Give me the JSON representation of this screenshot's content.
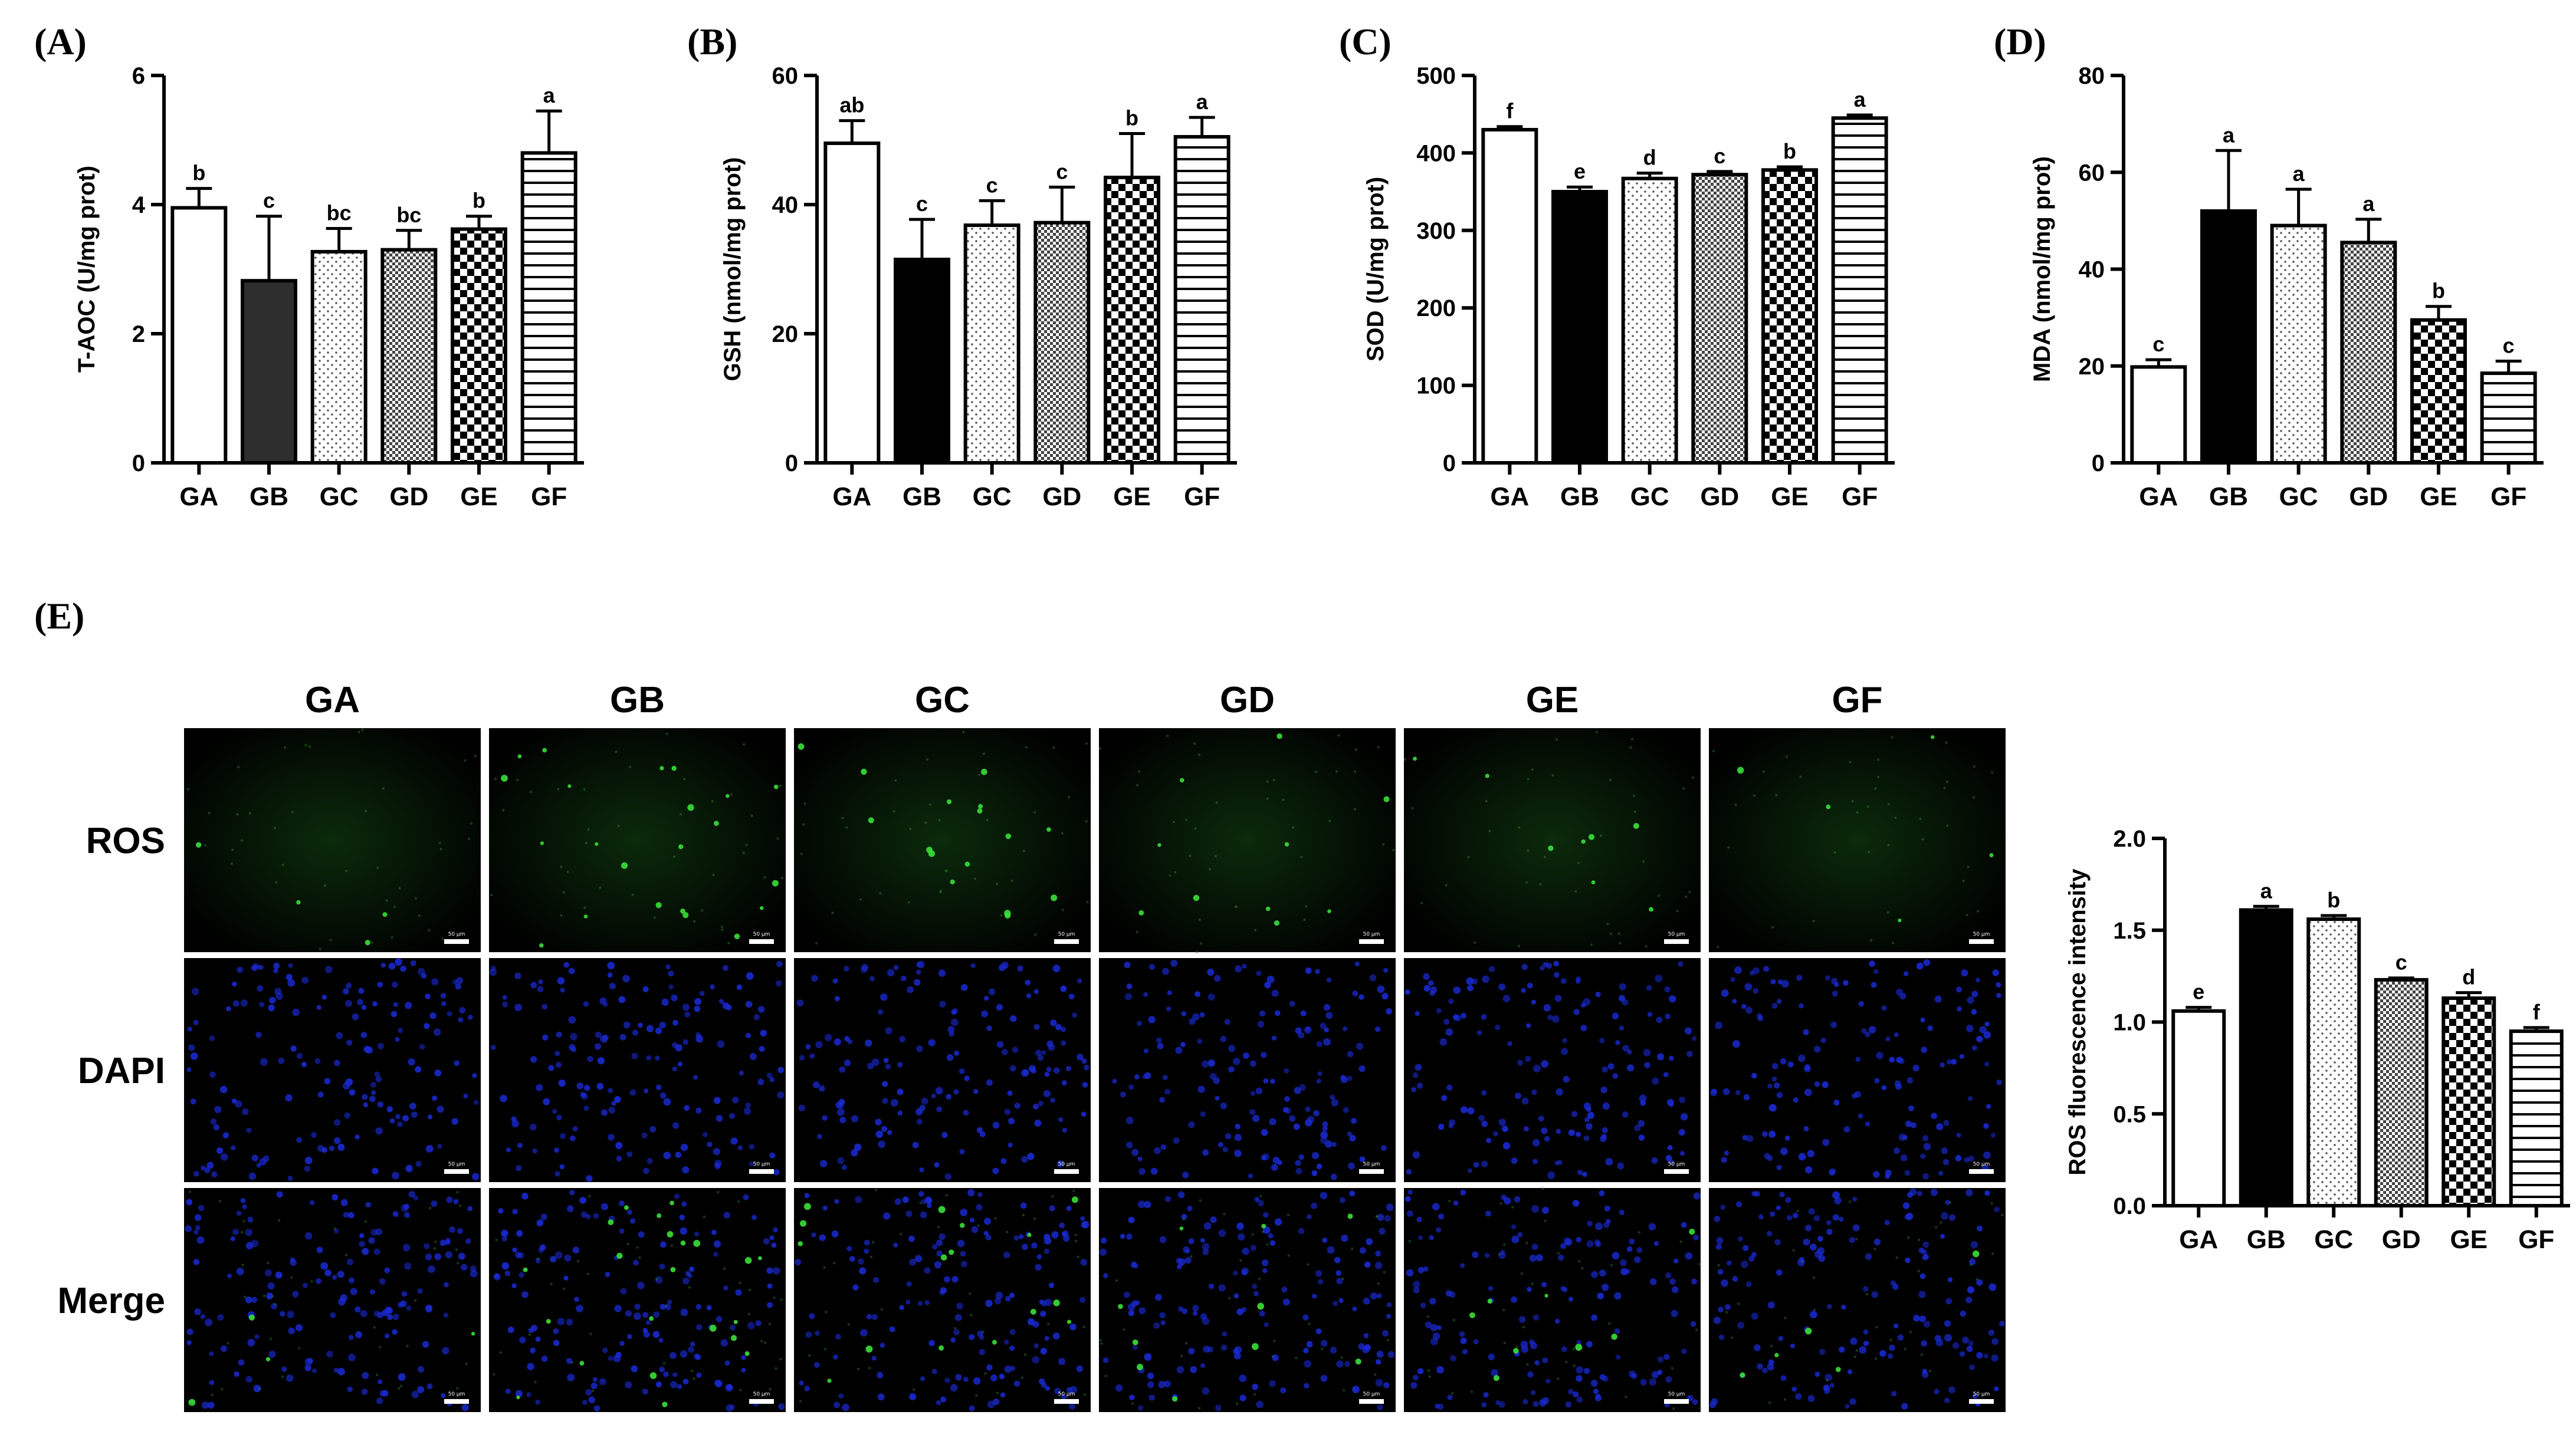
{
  "colors": {
    "ros_green": "#2f7d2a",
    "dapi_blue": "#1a2ad4",
    "bar_dark": "#2e2e2e",
    "bar_black": "#000000"
  },
  "panel_e_label": "(E)",
  "micro_columns": [
    "GA",
    "GB",
    "GC",
    "GD",
    "GE",
    "GF"
  ],
  "micro_rows": [
    "ROS",
    "DAPI",
    "Merge"
  ],
  "scale_bar_text": "50 μm",
  "chart_data": [
    {
      "type": "bar",
      "panel": "(A)",
      "categories": [
        "GA",
        "GB",
        "GC",
        "GD",
        "GE",
        "GF"
      ],
      "values": [
        3.95,
        2.82,
        3.27,
        3.3,
        3.62,
        4.8
      ],
      "errors": [
        0.3,
        1.0,
        0.36,
        0.3,
        0.2,
        0.65
      ],
      "letters": [
        "b",
        "c",
        "bc",
        "bc",
        "b",
        "a"
      ],
      "patterns": [
        "white",
        "dark",
        "dots",
        "fine-check",
        "checker",
        "hstripe"
      ],
      "ylabel": "T-AOC (U/mg prot)",
      "ylim": [
        0,
        6
      ],
      "yticks": [
        0,
        2,
        4,
        6
      ],
      "ytick_labels": [
        "0",
        "2",
        "4",
        "6"
      ]
    },
    {
      "type": "bar",
      "panel": "(B)",
      "categories": [
        "GA",
        "GB",
        "GC",
        "GD",
        "GE",
        "GF"
      ],
      "values": [
        49.5,
        31.5,
        36.8,
        37.2,
        44.2,
        50.5
      ],
      "errors": [
        3.5,
        6.2,
        3.8,
        5.5,
        6.8,
        3.0
      ],
      "letters": [
        "ab",
        "c",
        "c",
        "c",
        "b",
        "a"
      ],
      "patterns": [
        "white",
        "black",
        "dots",
        "fine-check",
        "checker",
        "hstripe"
      ],
      "ylabel": "GSH (nmol/mg prot)",
      "ylim": [
        0,
        60
      ],
      "yticks": [
        0,
        20,
        40,
        60
      ],
      "ytick_labels": [
        "0",
        "20",
        "40",
        "60"
      ]
    },
    {
      "type": "bar",
      "panel": "(C)",
      "categories": [
        "GA",
        "GB",
        "GC",
        "GD",
        "GE",
        "GF"
      ],
      "values": [
        430,
        350,
        367,
        372,
        378,
        445
      ],
      "errors": [
        4,
        6,
        7,
        4,
        4,
        4
      ],
      "letters": [
        "f",
        "e",
        "d",
        "c",
        "b",
        "a"
      ],
      "patterns": [
        "white",
        "black",
        "dots",
        "fine-check",
        "checker",
        "hstripe"
      ],
      "ylabel": "SOD (U/mg prot)",
      "ylim": [
        0,
        500
      ],
      "yticks": [
        0,
        100,
        200,
        300,
        400,
        500
      ],
      "ytick_labels": [
        "0",
        "100",
        "200",
        "300",
        "400",
        "500"
      ]
    },
    {
      "type": "bar",
      "panel": "(D)",
      "categories": [
        "GA",
        "GB",
        "GC",
        "GD",
        "GE",
        "GF"
      ],
      "values": [
        19.8,
        52.0,
        49.0,
        45.5,
        29.5,
        18.5
      ],
      "errors": [
        1.5,
        12.5,
        7.5,
        4.8,
        2.8,
        2.5
      ],
      "letters": [
        "c",
        "a",
        "a",
        "a",
        "b",
        "c"
      ],
      "patterns": [
        "white",
        "black",
        "dots",
        "fine-check",
        "checker",
        "hstripe"
      ],
      "ylabel": "MDA (nmol/mg prot)",
      "ylim": [
        0,
        80
      ],
      "yticks": [
        0,
        20,
        40,
        60,
        80
      ],
      "ytick_labels": [
        "0",
        "20",
        "40",
        "60",
        "80"
      ]
    },
    {
      "type": "bar",
      "panel": "(E)",
      "categories": [
        "GA",
        "GB",
        "GC",
        "GD",
        "GE",
        "GF"
      ],
      "values": [
        1.06,
        1.61,
        1.56,
        1.23,
        1.13,
        0.95
      ],
      "errors": [
        0.02,
        0.02,
        0.02,
        0.01,
        0.03,
        0.02
      ],
      "letters": [
        "e",
        "a",
        "b",
        "c",
        "d",
        "f"
      ],
      "patterns": [
        "white",
        "black",
        "dots",
        "fine-check",
        "checker",
        "hstripe"
      ],
      "ylabel": "ROS fluorescence intensity",
      "ylim": [
        0,
        2.0
      ],
      "yticks": [
        0,
        0.5,
        1.0,
        1.5,
        2.0
      ],
      "ytick_labels": [
        "0.0",
        "0.5",
        "1.0",
        "1.5",
        "2.0"
      ]
    }
  ]
}
